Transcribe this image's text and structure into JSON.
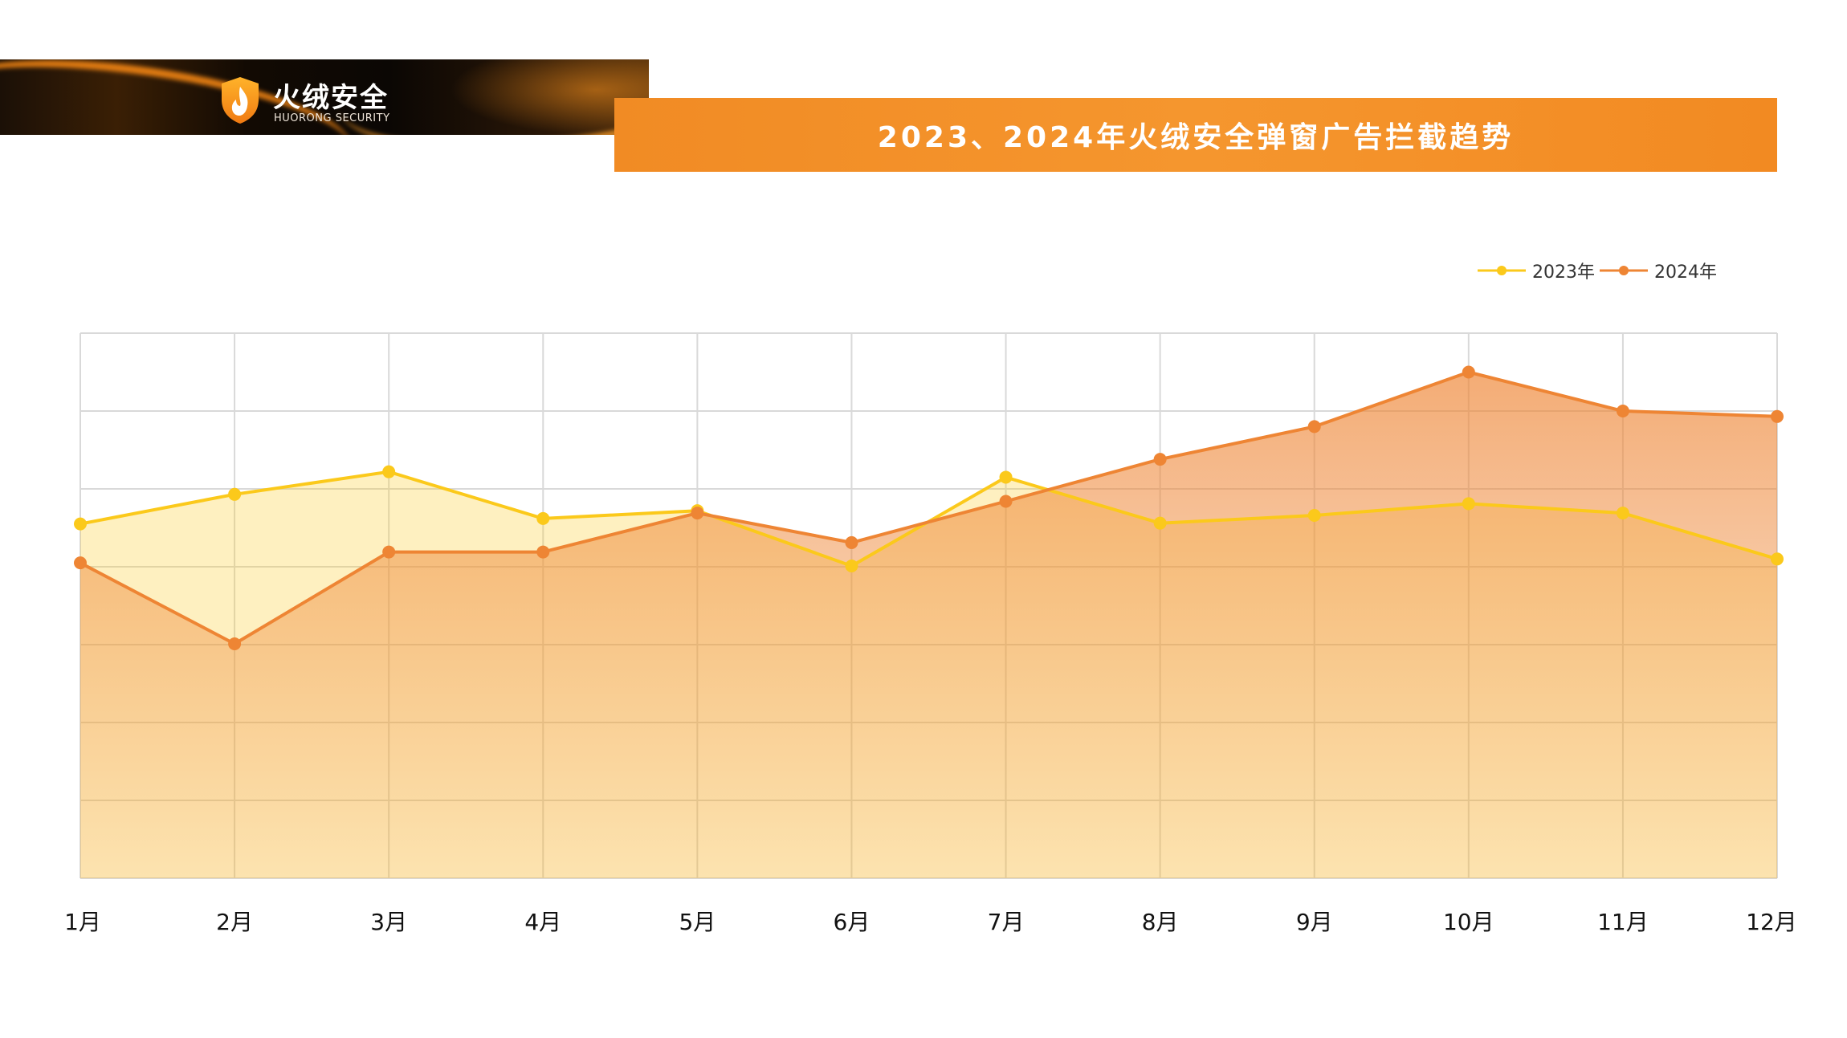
{
  "header": {
    "brand_name": "火绒安全",
    "brand_subtitle": "HUORONG SECURITY",
    "logo_icon": "shield-flame-icon"
  },
  "colors": {
    "banner": "#F5922A",
    "series_2023": "#FBC91B",
    "series_2024": "#EE8534",
    "grid": "#D9D9D9"
  },
  "chart_data": {
    "type": "area",
    "title": "2023、2024年火绒安全弹窗广告拦截趋势",
    "categories": [
      "1月",
      "2月",
      "3月",
      "4月",
      "5月",
      "6月",
      "7月",
      "8月",
      "9月",
      "10月",
      "11月",
      "12月"
    ],
    "series": [
      {
        "name": "2023年",
        "values": [
          4.55,
          4.93,
          5.22,
          4.62,
          4.72,
          4.01,
          5.15,
          4.56,
          4.66,
          4.81,
          4.69,
          4.1
        ]
      },
      {
        "name": "2024年",
        "values": [
          4.05,
          3.01,
          4.19,
          4.19,
          4.69,
          4.31,
          4.84,
          5.38,
          5.8,
          6.5,
          6.0,
          5.93
        ]
      }
    ],
    "ylim": [
      0,
      7
    ],
    "ytick_labels": false,
    "grid": true,
    "legend": "top-right",
    "xlabel": "",
    "ylabel": ""
  }
}
